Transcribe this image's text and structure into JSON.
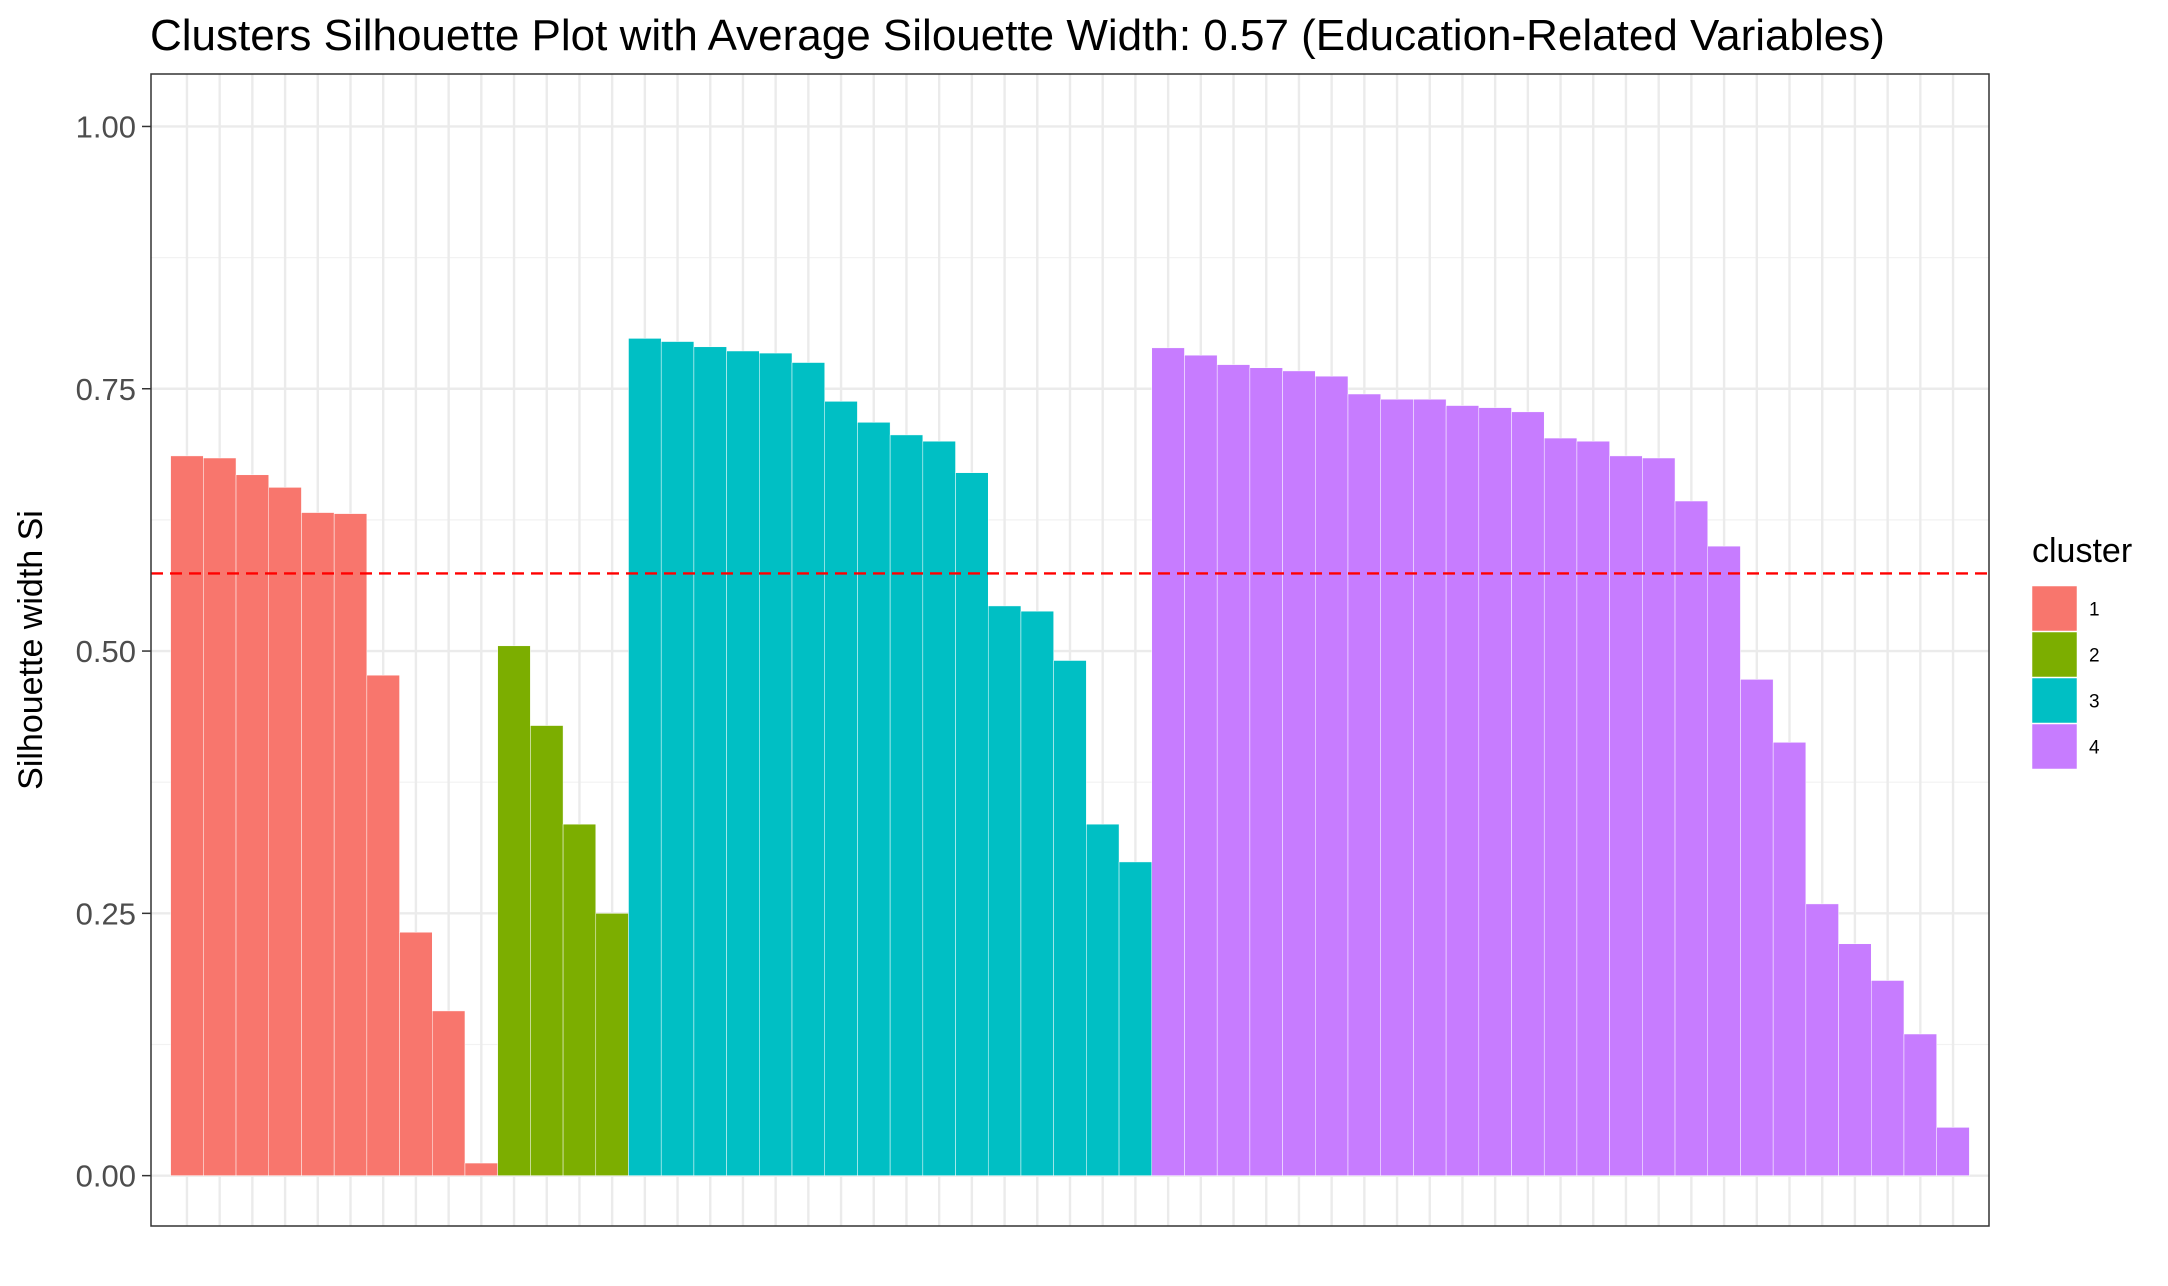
{
  "chart_data": {
    "type": "bar",
    "title": "Clusters Silhouette Plot with Average Silouette Width: 0.57 (Education-Related Variables)",
    "xlabel": "",
    "ylabel": "Silhouette width Si",
    "ylim": [
      -0.048,
      1.05
    ],
    "yticks": [
      "0.00",
      "0.25",
      "0.50",
      "0.75",
      "1.00"
    ],
    "grid": true,
    "legend_position": "right",
    "legend_title": "cluster",
    "average_line": {
      "value": 0.574,
      "color": "#FF0000",
      "style": "dashed"
    },
    "series": [
      {
        "name": "1",
        "color": "#F8766D",
        "values": [
          0.686,
          0.684,
          0.668,
          0.656,
          0.632,
          0.631,
          0.477,
          0.232,
          0.157,
          0.012
        ]
      },
      {
        "name": "2",
        "color": "#7CAE00",
        "values": [
          0.505,
          0.429,
          0.335,
          0.25
        ]
      },
      {
        "name": "3",
        "color": "#00BFC4",
        "values": [
          0.798,
          0.795,
          0.79,
          0.786,
          0.784,
          0.775,
          0.738,
          0.718,
          0.706,
          0.7,
          0.67,
          0.543,
          0.538,
          0.491,
          0.335,
          0.299
        ]
      },
      {
        "name": "4",
        "color": "#C77CFF",
        "values": [
          0.789,
          0.782,
          0.773,
          0.77,
          0.767,
          0.762,
          0.745,
          0.74,
          0.74,
          0.734,
          0.732,
          0.728,
          0.703,
          0.7,
          0.686,
          0.684,
          0.643,
          0.6,
          0.473,
          0.413,
          0.259,
          0.221,
          0.186,
          0.135,
          0.046
        ]
      }
    ]
  }
}
